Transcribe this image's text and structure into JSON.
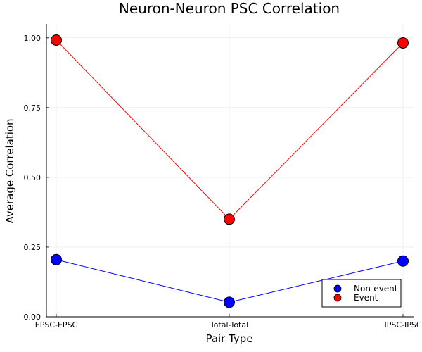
{
  "chart_data": {
    "type": "line",
    "title": "Neuron-Neuron PSC Correlation",
    "xlabel": "Pair Type",
    "ylabel": "Average Correlation",
    "categories": [
      "EPSC-EPSC",
      "Total-Total",
      "IPSC-IPSC"
    ],
    "yticks": [
      "0.00",
      "0.25",
      "0.50",
      "0.75",
      "1.00"
    ],
    "ylim": [
      0,
      1.05
    ],
    "grid": true,
    "legend_position": "bottom-right",
    "series": [
      {
        "name": "Non-event",
        "values": [
          0.205,
          0.052,
          0.2
        ],
        "color": "#0000ff"
      },
      {
        "name": "Event",
        "values": [
          0.992,
          0.35,
          0.982
        ],
        "color": "#ff0000"
      }
    ]
  }
}
